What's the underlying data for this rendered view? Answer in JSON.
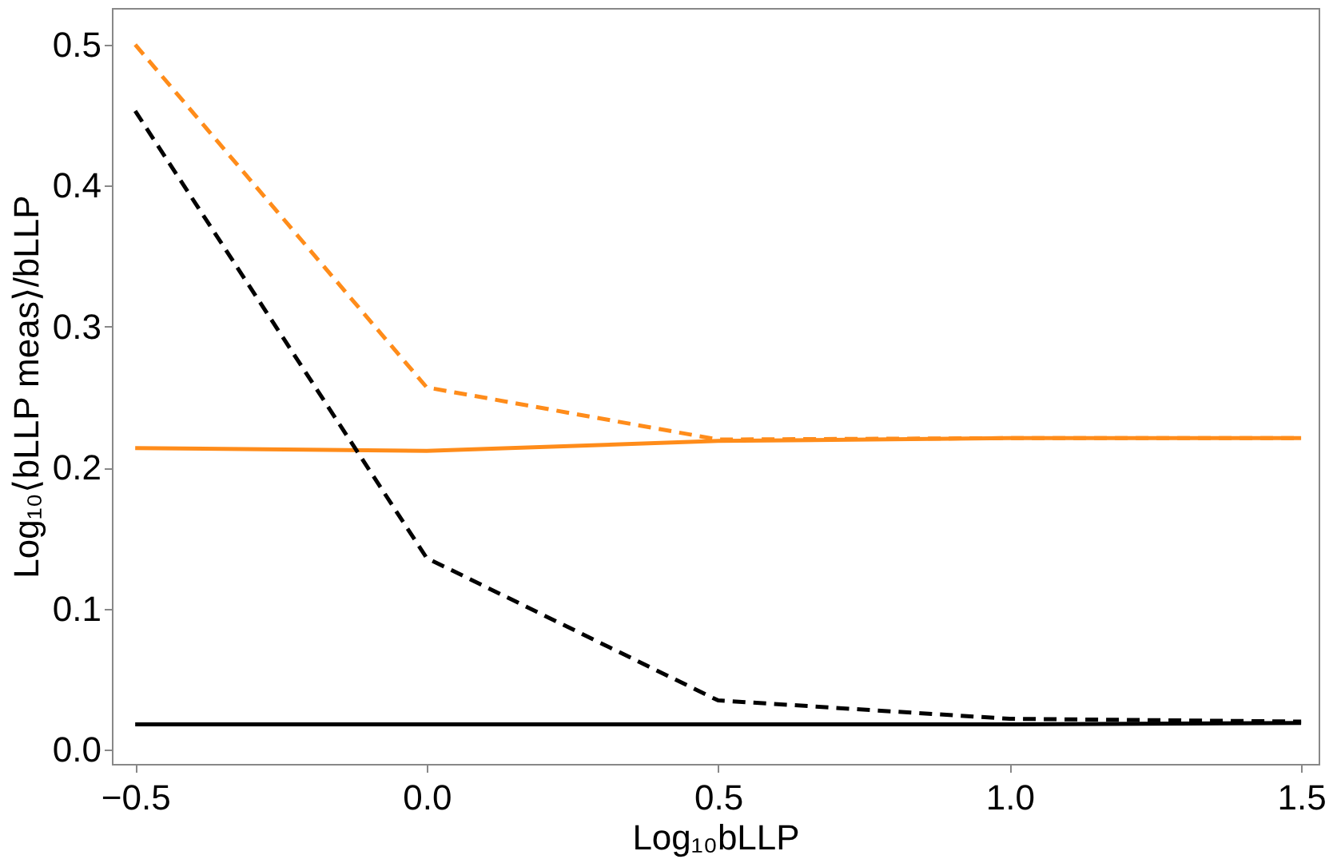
{
  "chart_data": {
    "type": "line",
    "xlabel": "Log₁₀bLLP",
    "ylabel": "Log₁₀⟨bLLP meas⟩/bLLP",
    "x": [
      -0.5,
      0.0,
      0.5,
      1.0,
      1.5
    ],
    "series": [
      {
        "color": "#ff8c1a",
        "line_style": "dashed",
        "values": [
          0.5,
          0.257,
          0.22,
          0.221,
          0.221
        ]
      },
      {
        "color": "#ff8c1a",
        "line_style": "solid",
        "values": [
          0.214,
          0.212,
          0.219,
          0.221,
          0.221
        ]
      },
      {
        "color": "#000000",
        "line_style": "dashed",
        "values": [
          0.453,
          0.136,
          0.035,
          0.022,
          0.02
        ]
      },
      {
        "color": "#000000",
        "line_style": "solid",
        "values": [
          0.018,
          0.018,
          0.018,
          0.018,
          0.019
        ]
      }
    ],
    "xlim": [
      -0.54,
      1.53
    ],
    "ylim": [
      -0.01,
      0.526
    ],
    "xticks": [
      {
        "value": -0.5,
        "label": "−0.5"
      },
      {
        "value": 0.0,
        "label": "0.0"
      },
      {
        "value": 0.5,
        "label": "0.5"
      },
      {
        "value": 1.0,
        "label": "1.0"
      },
      {
        "value": 1.5,
        "label": "1.5"
      }
    ],
    "yticks": [
      {
        "value": 0.0,
        "label": "0.0"
      },
      {
        "value": 0.1,
        "label": "0.1"
      },
      {
        "value": 0.2,
        "label": "0.2"
      },
      {
        "value": 0.3,
        "label": "0.3"
      },
      {
        "value": 0.4,
        "label": "0.4"
      },
      {
        "value": 0.5,
        "label": "0.5"
      }
    ],
    "grid": false,
    "marker": "none"
  }
}
